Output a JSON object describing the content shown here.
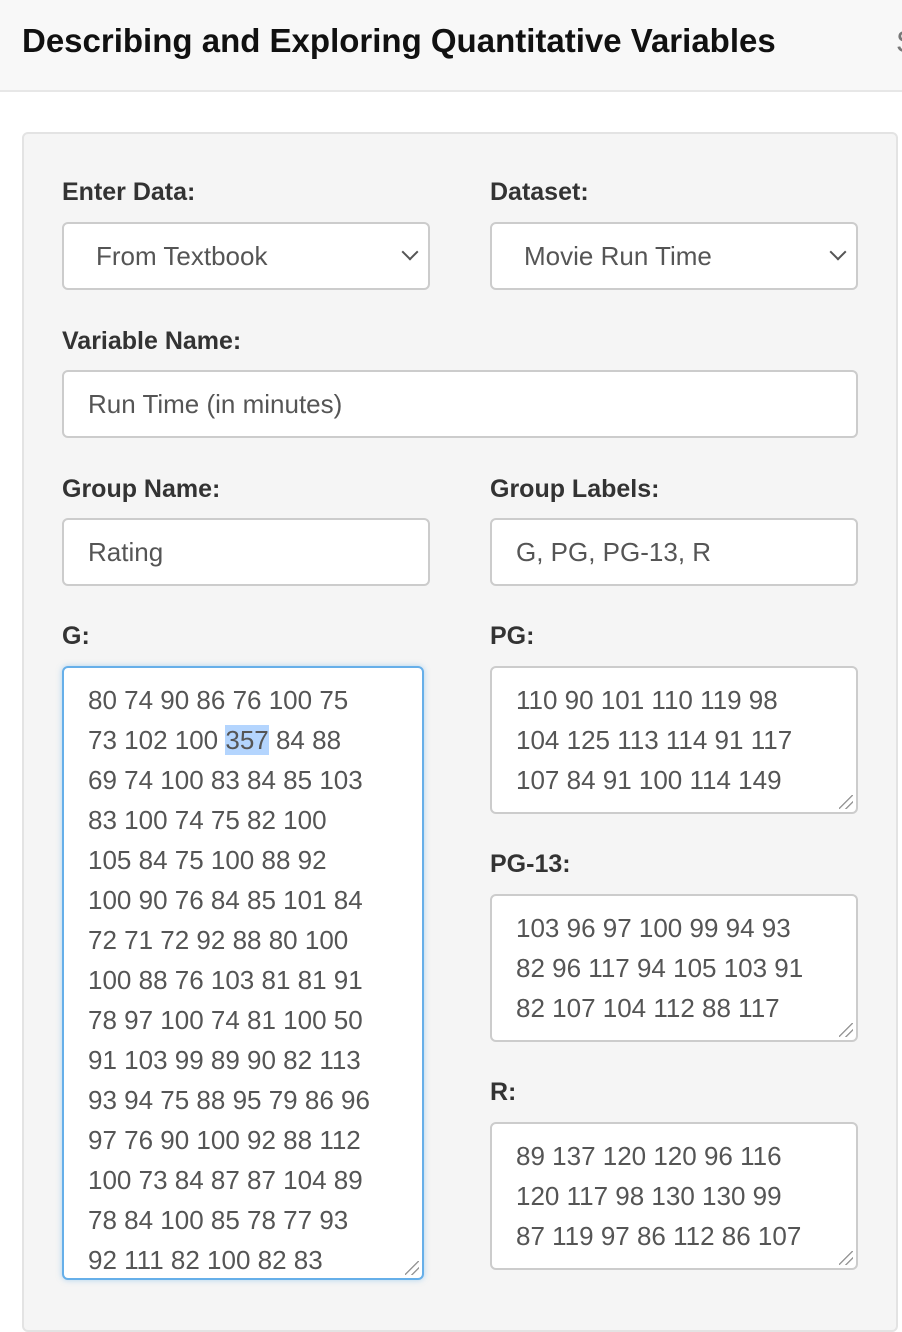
{
  "header": {
    "title": "Describing and Exploring Quantitative Variables",
    "next_nav": "S"
  },
  "form": {
    "enter_data": {
      "label": "Enter Data:",
      "value": "From Textbook"
    },
    "dataset": {
      "label": "Dataset:",
      "value": "Movie Run Time"
    },
    "variable_name": {
      "label": "Variable Name:",
      "value": "Run Time (in minutes)"
    },
    "group_name": {
      "label": "Group Name:",
      "value": "Rating"
    },
    "group_labels": {
      "label": "Group Labels:",
      "value": "G, PG, PG-13, R"
    },
    "groups": [
      {
        "label": "G:",
        "lines": [
          "80 74 90 86 76 100 75",
          "73 102 100 ",
          "69 74 100 83 84 85 103",
          "83 100 74 75 82 100",
          "105 84 75 100 88 92",
          "100 90 76 84 85 101 84",
          "72 71 72 92 88 80 100",
          "100 88 76 103 81 81 91",
          "78 97 100 74 81 100 50",
          "91 103 99 89 90 82 113",
          "93 94 75 88 95 79 86 96",
          "97 76 90 100 92 88 112",
          "100 73 84 87 87 104 89",
          "78 84 100 85 78 77 93",
          "92 111 82 100 82 83"
        ],
        "selected": "357",
        "after_selected": " 84 88"
      },
      {
        "label": "PG:",
        "lines": [
          "110 90 101 110 119 98",
          "104 125 113 114 91 117",
          "107 84 91 100 114 149"
        ]
      },
      {
        "label": "PG-13:",
        "lines": [
          "103 96 97 100 99 94 93",
          "82 96 117 94 105 103 91",
          "82 107 104 112 88 117"
        ]
      },
      {
        "label": "R:",
        "lines": [
          "89 137 120 120 96 116",
          "120 117 98 130 130 99",
          "87 119 97 86 112 86 107"
        ]
      }
    ]
  }
}
